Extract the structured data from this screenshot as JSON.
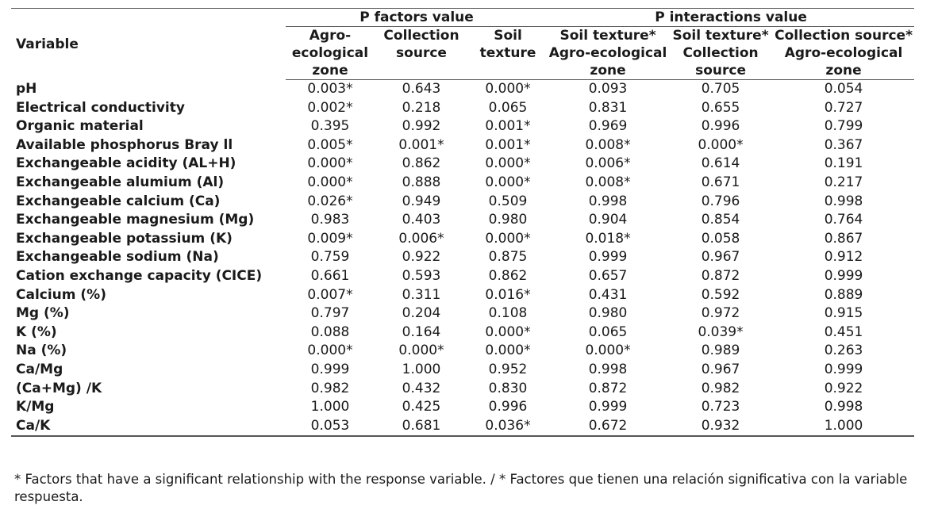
{
  "header": {
    "variable": "Variable",
    "group_factors": "P factors value",
    "group_interactions": "P interactions value",
    "columns": [
      "Agro-ecological zone",
      "Collection source",
      "Soil texture",
      "Soil texture* Agro-ecological zone",
      "Soil texture* Collection source",
      "Collection source* Agro-ecological zone"
    ]
  },
  "rows": [
    {
      "variable": "pH",
      "values": [
        "0.003*",
        "0.643",
        "0.000*",
        "0.093",
        "0.705",
        "0.054"
      ]
    },
    {
      "variable": "Electrical conductivity",
      "values": [
        "0.002*",
        "0.218",
        "0.065",
        "0.831",
        "0.655",
        "0.727"
      ]
    },
    {
      "variable": "Organic material",
      "values": [
        "0.395",
        "0.992",
        "0.001*",
        "0.969",
        "0.996",
        "0.799"
      ]
    },
    {
      "variable": "Available phosphorus Bray ll",
      "values": [
        "0.005*",
        "0.001*",
        "0.001*",
        "0.008*",
        "0.000*",
        "0.367"
      ]
    },
    {
      "variable": "Exchangeable acidity (AL+H)",
      "values": [
        "0.000*",
        "0.862",
        "0.000*",
        "0.006*",
        "0.614",
        "0.191"
      ]
    },
    {
      "variable": "Exchangeable alumium (Al)",
      "values": [
        "0.000*",
        "0.888",
        "0.000*",
        "0.008*",
        "0.671",
        "0.217"
      ]
    },
    {
      "variable": "Exchangeable calcium (Ca)",
      "values": [
        "0.026*",
        "0.949",
        "0.509",
        "0.998",
        "0.796",
        "0.998"
      ]
    },
    {
      "variable": "Exchangeable magnesium (Mg)",
      "values": [
        "0.983",
        "0.403",
        "0.980",
        "0.904",
        "0.854",
        "0.764"
      ]
    },
    {
      "variable": "Exchangeable potassium (K)",
      "values": [
        "0.009*",
        "0.006*",
        "0.000*",
        "0.018*",
        "0.058",
        "0.867"
      ]
    },
    {
      "variable": "Exchangeable sodium (Na)",
      "values": [
        "0.759",
        "0.922",
        "0.875",
        "0.999",
        "0.967",
        "0.912"
      ]
    },
    {
      "variable": "Cation exchange capacity (CICE)",
      "values": [
        "0.661",
        "0.593",
        "0.862",
        "0.657",
        "0.872",
        "0.999"
      ]
    },
    {
      "variable": "Calcium (%)",
      "values": [
        "0.007*",
        "0.311",
        "0.016*",
        "0.431",
        "0.592",
        "0.889"
      ]
    },
    {
      "variable": "Mg (%)",
      "values": [
        "0.797",
        "0.204",
        "0.108",
        "0.980",
        "0.972",
        "0.915"
      ]
    },
    {
      "variable": "K (%)",
      "values": [
        "0.088",
        "0.164",
        "0.000*",
        "0.065",
        "0.039*",
        "0.451"
      ]
    },
    {
      "variable": "Na (%)",
      "values": [
        "0.000*",
        "0.000*",
        "0.000*",
        "0.000*",
        "0.989",
        "0.263"
      ]
    },
    {
      "variable": "Ca/Mg",
      "values": [
        "0.999",
        "1.000",
        "0.952",
        "0.998",
        "0.967",
        "0.999"
      ]
    },
    {
      "variable": "(Ca+Mg) /K",
      "values": [
        "0.982",
        "0.432",
        "0.830",
        "0.872",
        "0.982",
        "0.922"
      ]
    },
    {
      "variable": "K/Mg",
      "values": [
        "1.000",
        "0.425",
        "0.996",
        "0.999",
        "0.723",
        "0.998"
      ]
    },
    {
      "variable": "Ca/K",
      "values": [
        "0.053",
        "0.681",
        "0.036*",
        "0.672",
        "0.932",
        "1.000"
      ]
    }
  ],
  "footnote": "* Factors that have a significant relationship with the response variable. / * Factores que tienen una relación significativa con la variable respuesta."
}
